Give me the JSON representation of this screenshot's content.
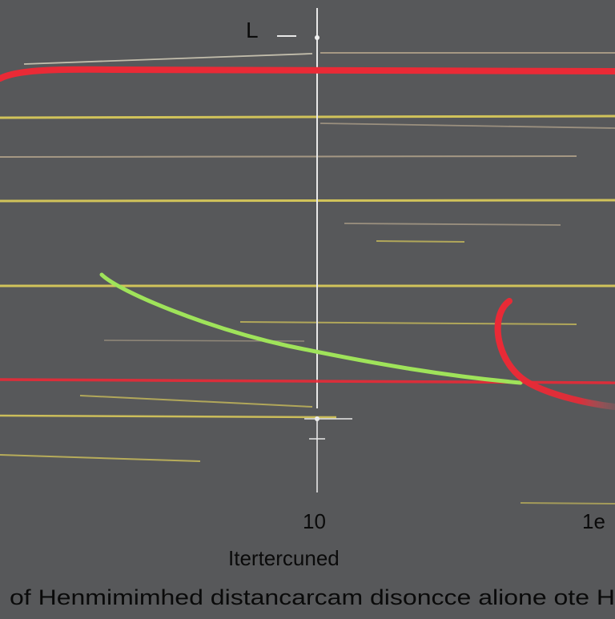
{
  "chart_data": {
    "type": "line",
    "title": "",
    "top_label": "L",
    "x_tick_labels": [
      "10",
      "1e"
    ],
    "xlabel": "Itertercuned",
    "caption": "of Henmimimhed distancarcam disoncce  alione ote  H",
    "grid": true,
    "colors": {
      "background": "#57585a",
      "gridline": "#d8c95a",
      "faint_gridline": "#b9a98f",
      "axis": "#e8e8e8",
      "red_series": "#ea2a36",
      "green_series": "#9fe35a",
      "text": "#0a0a0a"
    },
    "series": [
      {
        "color_name": "red",
        "shape": "flat-high-line"
      },
      {
        "color_name": "green",
        "shape": "descending-curve"
      },
      {
        "color_name": "red",
        "shape": "hook-curve"
      }
    ]
  }
}
